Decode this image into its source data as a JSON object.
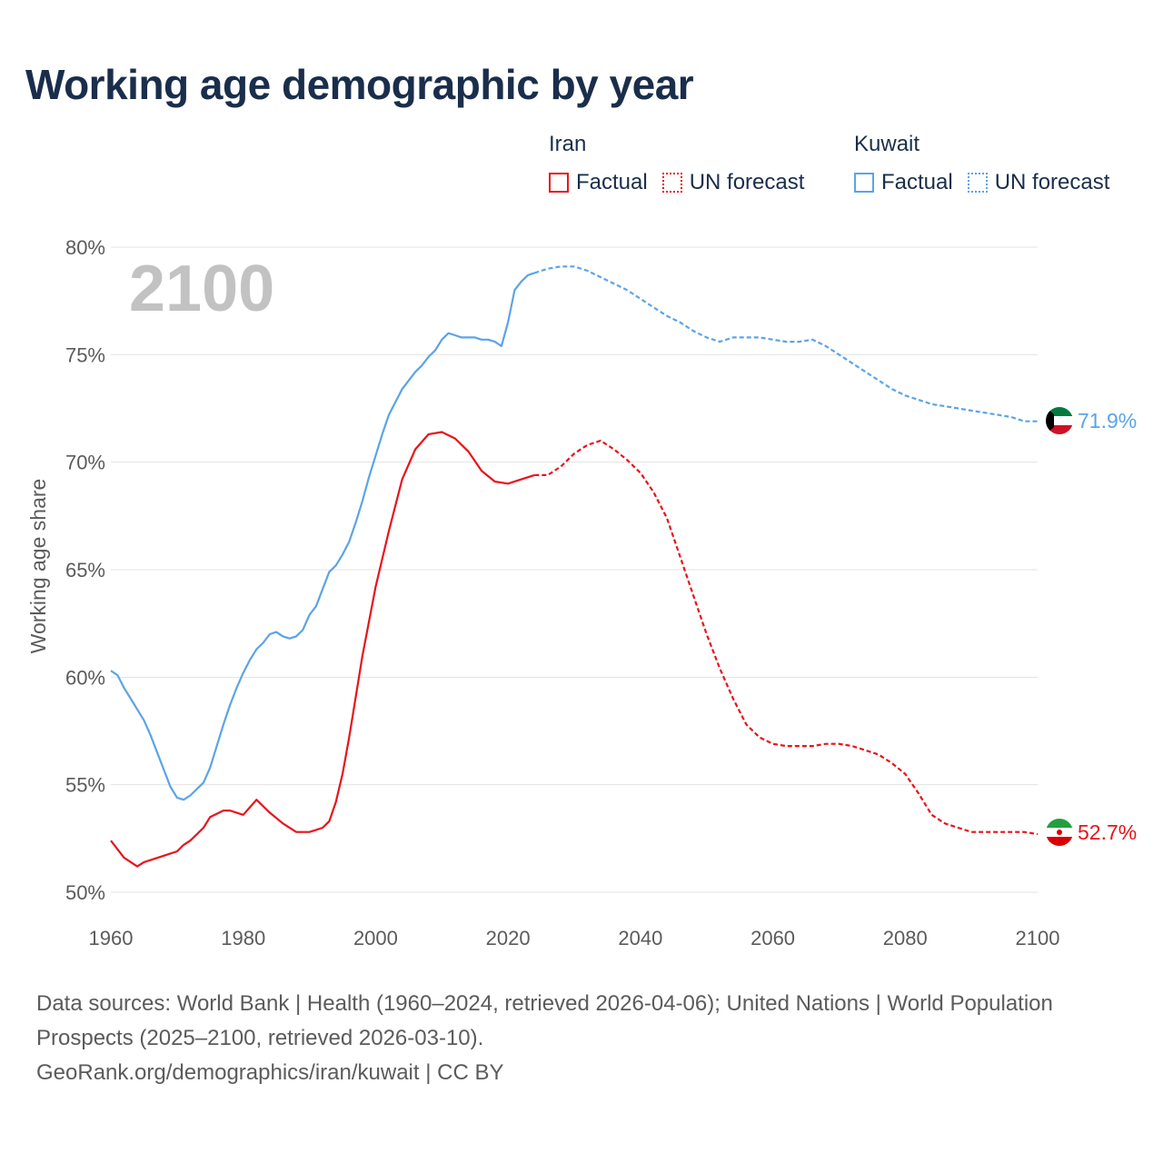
{
  "title": "Working age demographic by year",
  "legend": {
    "groups": [
      {
        "name": "Iran",
        "color": "#e8131b",
        "factual_label": "Factual",
        "forecast_label": "UN forecast"
      },
      {
        "name": "Kuwait",
        "color": "#5ba4e6",
        "factual_label": "Factual",
        "forecast_label": "UN forecast"
      }
    ]
  },
  "year_watermark": "2100",
  "end_labels": {
    "iran": "52.7%",
    "kuwait": "71.9%"
  },
  "icons": {
    "iran_flag": "iran-flag-icon",
    "kuwait_flag": "kuwait-flag-icon"
  },
  "sources": {
    "line1": "Data sources: World Bank | Health (1960–2024, retrieved 2026-04-06); United Nations | World Population Prospects (2025–2100, retrieved 2026-03-10).",
    "line2": "GeoRank.org/demographics/iran/kuwait | CC BY"
  },
  "chart_data": {
    "type": "line",
    "title": "Working age demographic by year",
    "xlabel": "",
    "ylabel": "Working age share",
    "xlim": [
      1960,
      2100
    ],
    "ylim": [
      50,
      80
    ],
    "x_ticks": [
      "1960",
      "1980",
      "2000",
      "2020",
      "2040",
      "2060",
      "2080",
      "2100"
    ],
    "y_ticks": [
      "50%",
      "55%",
      "60%",
      "65%",
      "70%",
      "75%",
      "80%"
    ],
    "grid": true,
    "factual_range": [
      1960,
      2024
    ],
    "forecast_range": [
      2025,
      2100
    ],
    "series": [
      {
        "name": "Iran",
        "color": "#e8131b",
        "points": [
          [
            1960,
            52.4
          ],
          [
            1962,
            51.6
          ],
          [
            1964,
            51.2
          ],
          [
            1965,
            51.4
          ],
          [
            1968,
            51.7
          ],
          [
            1970,
            51.9
          ],
          [
            1971,
            52.2
          ],
          [
            1972,
            52.4
          ],
          [
            1974,
            53.0
          ],
          [
            1975,
            53.5
          ],
          [
            1977,
            53.8
          ],
          [
            1978,
            53.8
          ],
          [
            1980,
            53.6
          ],
          [
            1982,
            54.3
          ],
          [
            1984,
            53.7
          ],
          [
            1986,
            53.2
          ],
          [
            1988,
            52.8
          ],
          [
            1990,
            52.8
          ],
          [
            1991,
            52.9
          ],
          [
            1992,
            53.0
          ],
          [
            1993,
            53.3
          ],
          [
            1994,
            54.2
          ],
          [
            1995,
            55.5
          ],
          [
            1996,
            57.2
          ],
          [
            1998,
            61.0
          ],
          [
            2000,
            64.2
          ],
          [
            2002,
            66.8
          ],
          [
            2004,
            69.2
          ],
          [
            2006,
            70.6
          ],
          [
            2008,
            71.3
          ],
          [
            2010,
            71.4
          ],
          [
            2012,
            71.1
          ],
          [
            2014,
            70.5
          ],
          [
            2016,
            69.6
          ],
          [
            2018,
            69.1
          ],
          [
            2020,
            69.0
          ],
          [
            2022,
            69.2
          ],
          [
            2024,
            69.4
          ],
          [
            2026,
            69.4
          ],
          [
            2028,
            69.8
          ],
          [
            2030,
            70.4
          ],
          [
            2032,
            70.8
          ],
          [
            2034,
            71.0
          ],
          [
            2036,
            70.6
          ],
          [
            2038,
            70.1
          ],
          [
            2040,
            69.5
          ],
          [
            2042,
            68.6
          ],
          [
            2044,
            67.4
          ],
          [
            2046,
            65.6
          ],
          [
            2048,
            63.8
          ],
          [
            2050,
            62.0
          ],
          [
            2052,
            60.4
          ],
          [
            2054,
            59.0
          ],
          [
            2056,
            57.8
          ],
          [
            2058,
            57.2
          ],
          [
            2060,
            56.9
          ],
          [
            2062,
            56.8
          ],
          [
            2064,
            56.8
          ],
          [
            2066,
            56.8
          ],
          [
            2068,
            56.9
          ],
          [
            2070,
            56.9
          ],
          [
            2072,
            56.8
          ],
          [
            2074,
            56.6
          ],
          [
            2076,
            56.4
          ],
          [
            2078,
            56.0
          ],
          [
            2080,
            55.5
          ],
          [
            2082,
            54.6
          ],
          [
            2084,
            53.6
          ],
          [
            2086,
            53.2
          ],
          [
            2088,
            53.0
          ],
          [
            2090,
            52.8
          ],
          [
            2092,
            52.8
          ],
          [
            2094,
            52.8
          ],
          [
            2096,
            52.8
          ],
          [
            2098,
            52.8
          ],
          [
            2100,
            52.7
          ]
        ]
      },
      {
        "name": "Kuwait",
        "color": "#5ba4e6",
        "points": [
          [
            1960,
            60.3
          ],
          [
            1961,
            60.1
          ],
          [
            1962,
            59.5
          ],
          [
            1963,
            59.0
          ],
          [
            1964,
            58.5
          ],
          [
            1965,
            58.0
          ],
          [
            1966,
            57.3
          ],
          [
            1967,
            56.5
          ],
          [
            1968,
            55.7
          ],
          [
            1969,
            54.9
          ],
          [
            1970,
            54.4
          ],
          [
            1971,
            54.3
          ],
          [
            1972,
            54.5
          ],
          [
            1973,
            54.8
          ],
          [
            1974,
            55.1
          ],
          [
            1975,
            55.8
          ],
          [
            1976,
            56.8
          ],
          [
            1977,
            57.8
          ],
          [
            1978,
            58.7
          ],
          [
            1979,
            59.5
          ],
          [
            1980,
            60.2
          ],
          [
            1981,
            60.8
          ],
          [
            1982,
            61.3
          ],
          [
            1983,
            61.6
          ],
          [
            1984,
            62.0
          ],
          [
            1985,
            62.1
          ],
          [
            1986,
            61.9
          ],
          [
            1987,
            61.8
          ],
          [
            1988,
            61.9
          ],
          [
            1989,
            62.2
          ],
          [
            1990,
            62.9
          ],
          [
            1991,
            63.3
          ],
          [
            1992,
            64.1
          ],
          [
            1993,
            64.9
          ],
          [
            1994,
            65.2
          ],
          [
            1995,
            65.7
          ],
          [
            1996,
            66.3
          ],
          [
            1997,
            67.2
          ],
          [
            1998,
            68.2
          ],
          [
            1999,
            69.3
          ],
          [
            2000,
            70.3
          ],
          [
            2001,
            71.3
          ],
          [
            2002,
            72.2
          ],
          [
            2003,
            72.8
          ],
          [
            2004,
            73.4
          ],
          [
            2005,
            73.8
          ],
          [
            2006,
            74.2
          ],
          [
            2007,
            74.5
          ],
          [
            2008,
            74.9
          ],
          [
            2009,
            75.2
          ],
          [
            2010,
            75.7
          ],
          [
            2011,
            76.0
          ],
          [
            2012,
            75.9
          ],
          [
            2013,
            75.8
          ],
          [
            2014,
            75.8
          ],
          [
            2015,
            75.8
          ],
          [
            2016,
            75.7
          ],
          [
            2017,
            75.7
          ],
          [
            2018,
            75.6
          ],
          [
            2019,
            75.4
          ],
          [
            2020,
            76.5
          ],
          [
            2021,
            78.0
          ],
          [
            2022,
            78.4
          ],
          [
            2023,
            78.7
          ],
          [
            2024,
            78.8
          ],
          [
            2026,
            79.0
          ],
          [
            2028,
            79.1
          ],
          [
            2030,
            79.1
          ],
          [
            2032,
            78.9
          ],
          [
            2034,
            78.6
          ],
          [
            2036,
            78.3
          ],
          [
            2038,
            78.0
          ],
          [
            2040,
            77.6
          ],
          [
            2042,
            77.2
          ],
          [
            2044,
            76.8
          ],
          [
            2046,
            76.5
          ],
          [
            2048,
            76.1
          ],
          [
            2050,
            75.8
          ],
          [
            2052,
            75.6
          ],
          [
            2054,
            75.8
          ],
          [
            2056,
            75.8
          ],
          [
            2058,
            75.8
          ],
          [
            2060,
            75.7
          ],
          [
            2062,
            75.6
          ],
          [
            2064,
            75.6
          ],
          [
            2066,
            75.7
          ],
          [
            2068,
            75.4
          ],
          [
            2070,
            75.0
          ],
          [
            2072,
            74.6
          ],
          [
            2074,
            74.2
          ],
          [
            2076,
            73.8
          ],
          [
            2078,
            73.4
          ],
          [
            2080,
            73.1
          ],
          [
            2082,
            72.9
          ],
          [
            2084,
            72.7
          ],
          [
            2086,
            72.6
          ],
          [
            2088,
            72.5
          ],
          [
            2090,
            72.4
          ],
          [
            2092,
            72.3
          ],
          [
            2094,
            72.2
          ],
          [
            2096,
            72.1
          ],
          [
            2098,
            71.9
          ],
          [
            2100,
            71.9
          ]
        ]
      }
    ]
  }
}
